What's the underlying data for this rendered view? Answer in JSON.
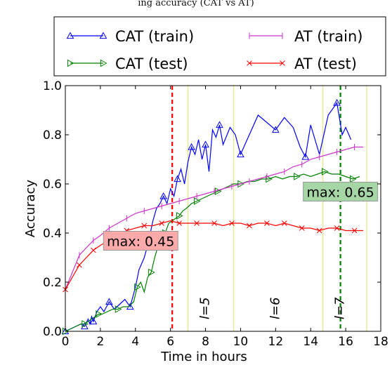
{
  "caption": "ing accuracy (CAT vs AT)",
  "chart_data": {
    "type": "line",
    "xlabel": "Time in hours",
    "ylabel": "Accuracy",
    "xlim": [
      0,
      18
    ],
    "ylim": [
      0.0,
      1.0
    ],
    "xticks": [
      "0",
      "2",
      "4",
      "6",
      "8",
      "10",
      "12",
      "14",
      "16",
      "18"
    ],
    "yticks": [
      "0.0",
      "0.2",
      "0.4",
      "0.6",
      "0.8",
      "1.0"
    ],
    "grid": false,
    "legend_position": "top",
    "series": [
      {
        "name": "CAT (train)",
        "color": "#0000ff",
        "marker": "triangle-up",
        "x": [
          0.0,
          0.3,
          0.6,
          0.9,
          1.1,
          1.3,
          1.4,
          1.5,
          1.6,
          1.8,
          2.0,
          2.2,
          2.5,
          2.8,
          3.1,
          3.4,
          3.7,
          4.0,
          4.2,
          4.5,
          4.7,
          5.0,
          5.2,
          5.4,
          5.6,
          5.8,
          6.0,
          6.2,
          6.4,
          6.6,
          6.8,
          7.0,
          7.2,
          7.4,
          7.6,
          7.8,
          8.0,
          8.2,
          8.4,
          8.6,
          8.8,
          9.0,
          9.4,
          9.7,
          10.0,
          10.5,
          11.0,
          11.5,
          12.0,
          12.5,
          13.0,
          13.4,
          13.7,
          14.0,
          14.5,
          15.0,
          15.5,
          15.8,
          16.0,
          16.3
        ],
        "y": [
          0.0,
          0.01,
          0.02,
          0.03,
          0.02,
          0.05,
          0.03,
          0.06,
          0.04,
          0.08,
          0.1,
          0.08,
          0.12,
          0.09,
          0.11,
          0.13,
          0.1,
          0.18,
          0.25,
          0.3,
          0.35,
          0.45,
          0.5,
          0.52,
          0.55,
          0.52,
          0.58,
          0.55,
          0.62,
          0.66,
          0.6,
          0.69,
          0.75,
          0.72,
          0.78,
          0.7,
          0.76,
          0.65,
          0.82,
          0.79,
          0.84,
          0.76,
          0.83,
          0.8,
          0.72,
          0.8,
          0.88,
          0.85,
          0.82,
          0.87,
          0.83,
          0.75,
          0.71,
          0.84,
          0.72,
          0.88,
          0.93,
          0.8,
          0.83,
          0.78
        ]
      },
      {
        "name": "CAT (test)",
        "color": "#008000",
        "marker": "triangle-right",
        "x": [
          0.0,
          0.3,
          0.6,
          0.9,
          1.1,
          1.3,
          1.5,
          1.7,
          1.9,
          2.1,
          2.4,
          2.7,
          3.0,
          3.3,
          3.6,
          3.9,
          4.1,
          4.3,
          4.5,
          4.7,
          4.9,
          5.1,
          5.3,
          5.5,
          5.7,
          5.9,
          6.1,
          6.3,
          6.5,
          6.7,
          6.9,
          7.2,
          7.5,
          7.8,
          8.1,
          8.4,
          8.7,
          9.0,
          9.3,
          9.6,
          10.0,
          10.4,
          10.8,
          11.2,
          11.6,
          12.0,
          12.4,
          12.8,
          13.2,
          13.6,
          14.0,
          14.4,
          14.8,
          15.2,
          15.6,
          16.0,
          16.4,
          16.8
        ],
        "y": [
          0.0,
          0.01,
          0.02,
          0.03,
          0.03,
          0.04,
          0.05,
          0.06,
          0.07,
          0.07,
          0.08,
          0.09,
          0.09,
          0.1,
          0.1,
          0.12,
          0.18,
          0.2,
          0.16,
          0.22,
          0.24,
          0.3,
          0.35,
          0.38,
          0.4,
          0.44,
          0.45,
          0.46,
          0.47,
          0.49,
          0.5,
          0.52,
          0.53,
          0.54,
          0.55,
          0.56,
          0.57,
          0.58,
          0.59,
          0.6,
          0.6,
          0.61,
          0.61,
          0.62,
          0.62,
          0.63,
          0.62,
          0.63,
          0.63,
          0.64,
          0.63,
          0.64,
          0.65,
          0.64,
          0.64,
          0.63,
          0.62,
          0.63
        ]
      },
      {
        "name": "AT (train)",
        "color": "#cc33cc",
        "marker": "vertical-tick",
        "x": [
          0.0,
          0.4,
          0.8,
          1.2,
          1.6,
          2.0,
          2.5,
          3.0,
          3.5,
          4.0,
          4.5,
          5.0,
          5.5,
          6.0,
          6.5,
          7.0,
          7.5,
          8.0,
          8.5,
          9.0,
          9.5,
          10.0,
          10.5,
          11.0,
          11.5,
          12.0,
          12.5,
          13.0,
          13.5,
          14.0,
          14.5,
          15.0,
          15.5,
          16.0,
          16.5,
          17.0
        ],
        "y": [
          0.17,
          0.24,
          0.31,
          0.34,
          0.37,
          0.39,
          0.42,
          0.44,
          0.46,
          0.48,
          0.49,
          0.5,
          0.51,
          0.52,
          0.53,
          0.54,
          0.55,
          0.56,
          0.57,
          0.58,
          0.59,
          0.6,
          0.61,
          0.62,
          0.63,
          0.64,
          0.65,
          0.67,
          0.68,
          0.7,
          0.71,
          0.72,
          0.73,
          0.74,
          0.75,
          0.75
        ]
      },
      {
        "name": "AT (test)",
        "color": "#ff0000",
        "marker": "x",
        "x": [
          0.0,
          0.4,
          0.8,
          1.2,
          1.6,
          2.0,
          2.5,
          3.0,
          3.5,
          4.0,
          4.5,
          5.0,
          5.5,
          6.0,
          6.5,
          7.0,
          7.5,
          8.0,
          8.5,
          9.0,
          9.5,
          10.0,
          10.5,
          11.0,
          11.5,
          12.0,
          12.5,
          13.0,
          13.5,
          14.0,
          14.5,
          15.0,
          15.5,
          16.0,
          16.5,
          17.0
        ],
        "y": [
          0.17,
          0.22,
          0.27,
          0.3,
          0.33,
          0.35,
          0.37,
          0.39,
          0.41,
          0.42,
          0.43,
          0.43,
          0.44,
          0.45,
          0.44,
          0.44,
          0.44,
          0.44,
          0.44,
          0.43,
          0.44,
          0.44,
          0.43,
          0.44,
          0.44,
          0.43,
          0.44,
          0.43,
          0.42,
          0.42,
          0.41,
          0.42,
          0.42,
          0.41,
          0.41,
          0.41
        ]
      }
    ],
    "vlines": [
      {
        "x": 6.1,
        "color": "#ff0000",
        "style": "dashed",
        "width": 2.2
      },
      {
        "x": 15.7,
        "color": "#008000",
        "style": "dashed",
        "width": 2.2
      },
      {
        "x": 7.0,
        "color": "#e6e68a",
        "style": "solid",
        "width": 1.2
      },
      {
        "x": 9.6,
        "color": "#e6e68a",
        "style": "solid",
        "width": 1.2
      },
      {
        "x": 14.7,
        "color": "#e6e68a",
        "style": "solid",
        "width": 1.2
      },
      {
        "x": 17.2,
        "color": "#e6e68a",
        "style": "solid",
        "width": 1.2
      }
    ],
    "stage_labels": [
      {
        "text": "l=5",
        "x": 8.2
      },
      {
        "text": "l=6",
        "x": 12.2
      },
      {
        "text": "l=7",
        "x": 15.9
      }
    ],
    "annotations": [
      {
        "text": "max: 0.45",
        "x": 4.3,
        "y": 0.37,
        "bg": "#ffaaaa"
      },
      {
        "text": "max: 0.65",
        "x": 15.7,
        "y": 0.57,
        "bg": "#a6d6a6"
      }
    ]
  }
}
